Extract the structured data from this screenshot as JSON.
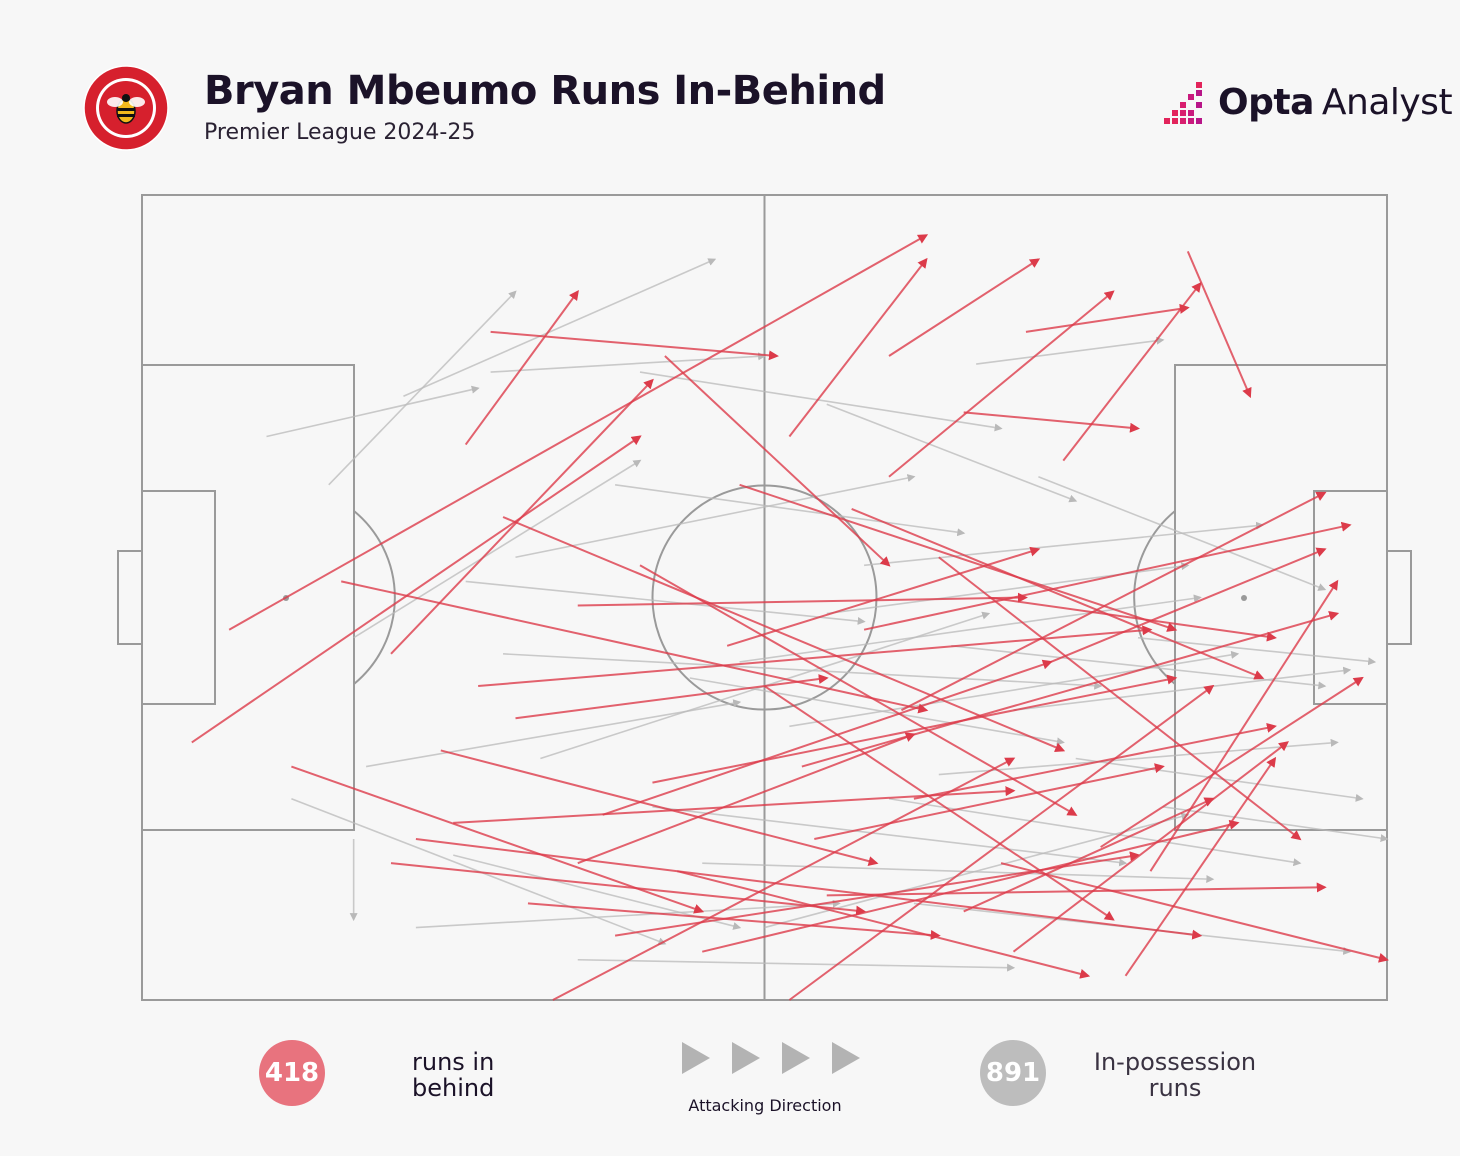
{
  "header": {
    "title": "Bryan Mbeumo Runs In-Behind",
    "subtitle": "Premier League 2024-25",
    "brand_bold": "Opta",
    "brand_regular": "Analyst"
  },
  "chart_data": {
    "type": "scatter",
    "title": "Bryan Mbeumo Runs In-Behind",
    "subtitle": "Premier League 2024-25",
    "pitch_length": [
      0,
      100
    ],
    "pitch_width": [
      0,
      100
    ],
    "attacking_direction": "left-to-right",
    "legend_placement": "bottom",
    "series": [
      {
        "name": "runs in behind",
        "count": "418",
        "color": "#dc3b4a",
        "runs": [
          [
            28,
            17,
            51,
            20
          ],
          [
            7,
            54,
            63,
            5
          ],
          [
            4,
            68,
            40,
            30
          ],
          [
            20,
            57,
            41,
            23
          ],
          [
            26,
            31,
            35,
            12
          ],
          [
            52,
            30,
            63,
            8
          ],
          [
            42,
            20,
            60,
            46
          ],
          [
            60,
            35,
            78,
            12
          ],
          [
            74,
            33,
            85,
            11
          ],
          [
            84,
            7,
            89,
            25
          ],
          [
            60,
            20,
            72,
            8
          ],
          [
            71,
            17,
            84,
            14
          ],
          [
            66,
            27,
            80,
            29
          ],
          [
            47,
            56,
            72,
            44
          ],
          [
            30,
            65,
            55,
            60
          ],
          [
            25,
            78,
            70,
            74
          ],
          [
            38,
            92,
            80,
            82
          ],
          [
            55,
            87,
            95,
            86
          ],
          [
            41,
            73,
            83,
            60
          ],
          [
            27,
            61,
            81,
            54
          ],
          [
            35,
            51,
            71,
            50
          ],
          [
            62,
            75,
            91,
            66
          ],
          [
            69,
            83,
            100,
            95
          ],
          [
            33,
            100,
            70,
            70
          ],
          [
            52,
            100,
            86,
            61
          ],
          [
            70,
            94,
            92,
            68
          ],
          [
            61,
            64,
            95,
            37
          ],
          [
            45,
            94,
            88,
            78
          ],
          [
            22,
            80,
            85,
            92
          ],
          [
            12,
            71,
            45,
            89
          ],
          [
            16,
            48,
            63,
            64
          ],
          [
            29,
            40,
            74,
            69
          ],
          [
            53,
            71,
            96,
            52
          ],
          [
            79,
            97,
            91,
            70
          ],
          [
            77,
            81,
            98,
            60
          ],
          [
            48,
            36,
            83,
            54
          ],
          [
            64,
            45,
            93,
            80
          ],
          [
            43,
            84,
            76,
            97
          ],
          [
            58,
            54,
            97,
            41
          ],
          [
            73,
            58,
            95,
            44
          ],
          [
            24,
            69,
            59,
            83
          ],
          [
            37,
            77,
            73,
            58
          ],
          [
            66,
            89,
            86,
            75
          ],
          [
            57,
            39,
            90,
            60
          ],
          [
            31,
            88,
            64,
            92
          ],
          [
            81,
            84,
            96,
            48
          ],
          [
            50,
            61,
            78,
            90
          ],
          [
            40,
            46,
            75,
            77
          ],
          [
            68,
            50,
            91,
            55
          ],
          [
            54,
            80,
            82,
            71
          ],
          [
            35,
            83,
            62,
            67
          ],
          [
            20,
            83,
            58,
            89
          ]
        ]
      },
      {
        "name": "In-possession runs",
        "count": "891",
        "color": "#b9b9b9",
        "runs": [
          [
            15,
            36,
            30,
            12
          ],
          [
            21,
            25,
            46,
            8
          ],
          [
            28,
            22,
            50,
            20
          ],
          [
            17,
            55,
            40,
            33
          ],
          [
            30,
            45,
            62,
            35
          ],
          [
            40,
            22,
            69,
            29
          ],
          [
            55,
            26,
            75,
            38
          ],
          [
            48,
            58,
            85,
            50
          ],
          [
            65,
            56,
            95,
            61
          ],
          [
            70,
            64,
            97,
            59
          ],
          [
            60,
            75,
            93,
            83
          ],
          [
            45,
            83,
            86,
            85
          ],
          [
            22,
            91,
            56,
            88
          ],
          [
            12,
            75,
            42,
            93
          ],
          [
            18,
            71,
            48,
            63
          ],
          [
            32,
            70,
            68,
            52
          ],
          [
            52,
            66,
            88,
            57
          ],
          [
            75,
            70,
            98,
            75
          ],
          [
            80,
            55,
            99,
            58
          ],
          [
            62,
            88,
            97,
            94
          ],
          [
            35,
            95,
            70,
            96
          ],
          [
            44,
            60,
            74,
            68
          ],
          [
            26,
            48,
            58,
            53
          ],
          [
            58,
            46,
            90,
            41
          ],
          [
            72,
            35,
            95,
            49
          ],
          [
            67,
            21,
            82,
            18
          ],
          [
            38,
            36,
            66,
            42
          ],
          [
            25,
            82,
            48,
            91
          ],
          [
            82,
            76,
            100,
            80
          ],
          [
            50,
            91,
            84,
            77
          ],
          [
            10,
            30,
            27,
            24
          ],
          [
            17,
            80,
            17,
            90
          ],
          [
            29,
            57,
            77,
            61
          ],
          [
            55,
            52,
            84,
            46
          ],
          [
            64,
            72,
            96,
            68
          ],
          [
            41,
            76,
            79,
            83
          ]
        ]
      }
    ],
    "direction_label": "Attacking Direction"
  }
}
